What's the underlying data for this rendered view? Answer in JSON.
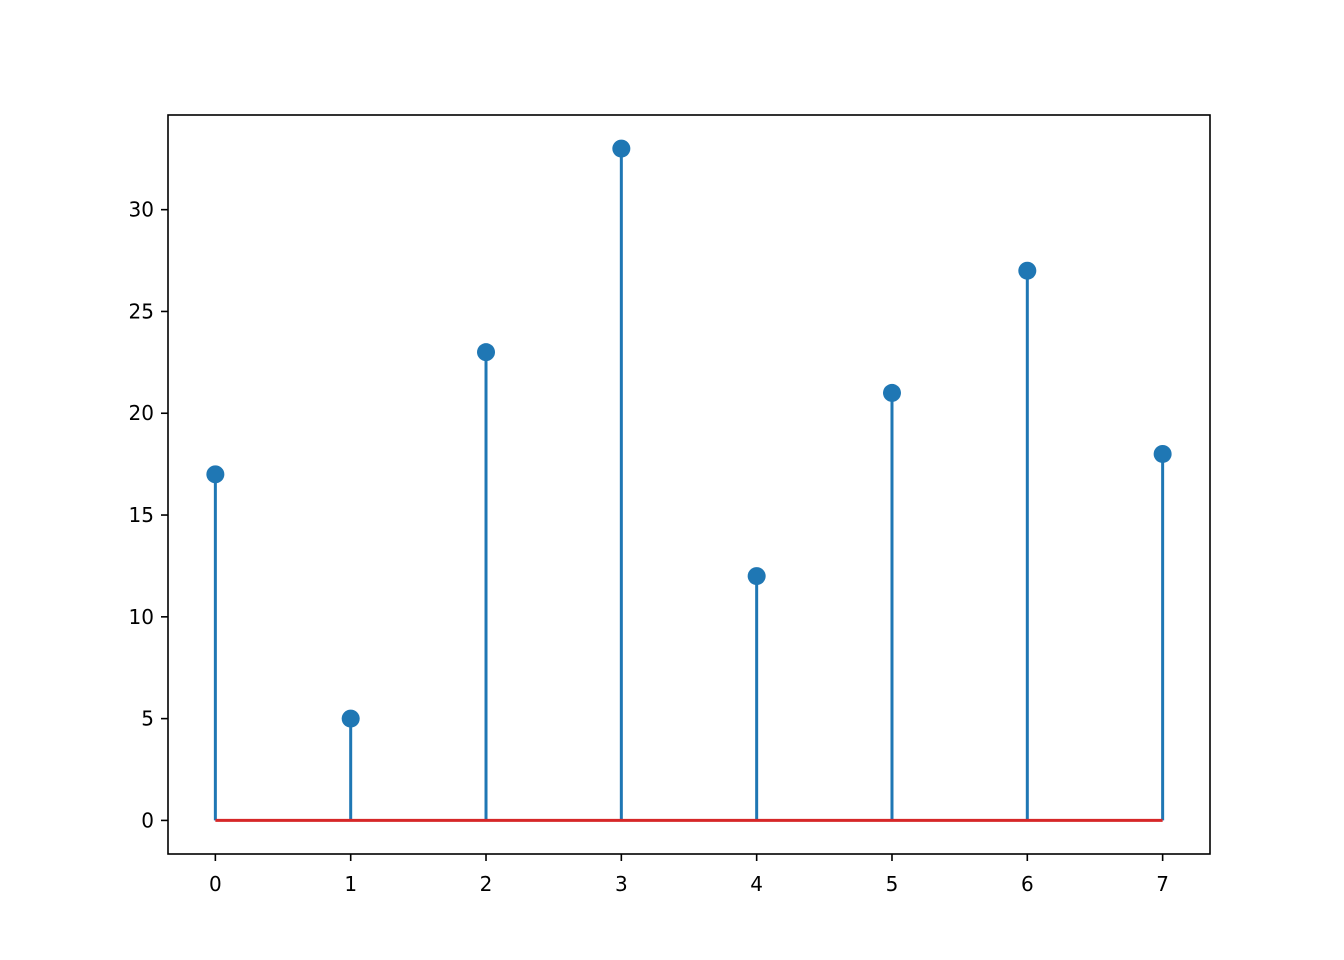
{
  "chart_data": {
    "type": "stem",
    "x": [
      0,
      1,
      2,
      3,
      4,
      5,
      6,
      7
    ],
    "values": [
      17,
      5,
      23,
      33,
      12,
      21,
      27,
      18
    ],
    "color": "#1f77b4",
    "baseline": 0,
    "baseline_color": "#d62728",
    "xlim": [
      -0.35,
      7.35
    ],
    "ylim": [
      -1.65,
      34.65
    ],
    "xticks": [
      0,
      1,
      2,
      3,
      4,
      5,
      6,
      7
    ],
    "yticks": [
      0,
      5,
      10,
      15,
      20,
      25,
      30
    ],
    "grid": false
  }
}
